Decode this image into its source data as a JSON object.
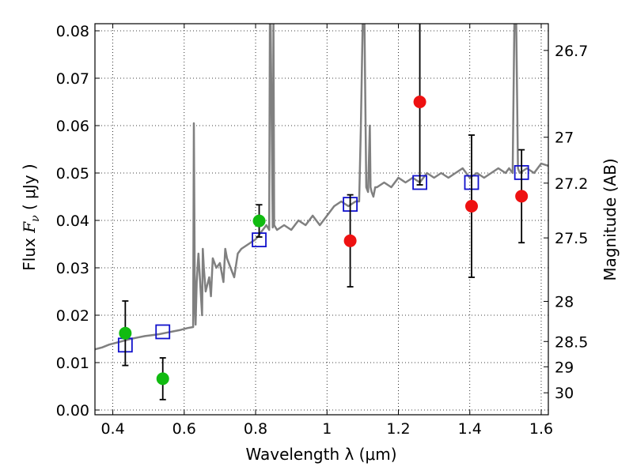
{
  "chart_data": {
    "type": "scatter",
    "title": "",
    "xlabel": "Wavelength  λ (μm)",
    "ylabel_prefix": "Flux  ",
    "ylabel_symbol": "F",
    "ylabel_subscript": "ν",
    "ylabel_unit": " ( μJy )",
    "y2label": "Magnitude (AB)",
    "xlim": [
      0.35,
      1.62
    ],
    "ylim": [
      -0.001,
      0.0815
    ],
    "grid": true,
    "x_ticks": [
      0.4,
      0.6,
      0.8,
      1.0,
      1.2,
      1.4,
      1.6
    ],
    "x_tick_labels": [
      "0.4",
      "0.6",
      "0.8",
      "1",
      "1.2",
      "1.4",
      "1.6"
    ],
    "y_ticks": [
      0.0,
      0.01,
      0.02,
      0.03,
      0.04,
      0.05,
      0.06,
      0.07,
      0.08
    ],
    "y_tick_labels": [
      "0.00",
      "0.01",
      "0.02",
      "0.03",
      "0.04",
      "0.05",
      "0.06",
      "0.07",
      "0.08"
    ],
    "mag_ticks": [
      26.7,
      27,
      27.2,
      27.5,
      28,
      28.5,
      29,
      30
    ],
    "mag_tick_labels": [
      "26.7",
      "27",
      "27.2",
      "27.5",
      "28",
      "28.5",
      "29",
      "30"
    ],
    "colors": {
      "model": "#808080",
      "observed_optical": "#11bb11",
      "observed_nir": "#ee1111",
      "model_photometry": "#1111cc",
      "errorbar": "#000000"
    },
    "series": [
      {
        "name": "model spectrum",
        "kind": "line",
        "x": [
          0.35,
          0.37,
          0.39,
          0.41,
          0.43,
          0.45,
          0.47,
          0.49,
          0.51,
          0.53,
          0.55,
          0.57,
          0.59,
          0.61,
          0.625,
          0.627,
          0.63,
          0.632,
          0.635,
          0.64,
          0.65,
          0.652,
          0.655,
          0.66,
          0.67,
          0.675,
          0.68,
          0.69,
          0.7,
          0.71,
          0.715,
          0.72,
          0.73,
          0.74,
          0.75,
          0.76,
          0.78,
          0.8,
          0.82,
          0.83,
          0.838,
          0.84,
          0.842,
          0.848,
          0.85,
          0.852,
          0.86,
          0.88,
          0.9,
          0.92,
          0.94,
          0.96,
          0.98,
          1.0,
          1.02,
          1.04,
          1.06,
          1.08,
          1.09,
          1.095,
          1.1,
          1.105,
          1.11,
          1.115,
          1.12,
          1.122,
          1.125,
          1.13,
          1.135,
          1.14,
          1.16,
          1.18,
          1.2,
          1.22,
          1.24,
          1.26,
          1.28,
          1.3,
          1.32,
          1.34,
          1.36,
          1.38,
          1.4,
          1.42,
          1.44,
          1.46,
          1.48,
          1.5,
          1.51,
          1.52,
          1.525,
          1.53,
          1.535,
          1.54,
          1.56,
          1.58,
          1.6,
          1.62
        ],
        "y": [
          0.0128,
          0.0132,
          0.0138,
          0.0142,
          0.0146,
          0.015,
          0.0153,
          0.0156,
          0.0158,
          0.016,
          0.0163,
          0.0166,
          0.0169,
          0.0173,
          0.0175,
          0.0605,
          0.022,
          0.018,
          0.027,
          0.033,
          0.02,
          0.034,
          0.03,
          0.025,
          0.028,
          0.024,
          0.032,
          0.03,
          0.031,
          0.027,
          0.034,
          0.032,
          0.03,
          0.028,
          0.033,
          0.034,
          0.035,
          0.036,
          0.038,
          0.039,
          0.038,
          0.082,
          0.082,
          0.0385,
          0.082,
          0.039,
          0.038,
          0.039,
          0.038,
          0.04,
          0.039,
          0.041,
          0.039,
          0.041,
          0.043,
          0.044,
          0.043,
          0.044,
          0.044,
          0.06,
          0.082,
          0.082,
          0.047,
          0.046,
          0.06,
          0.047,
          0.046,
          0.045,
          0.047,
          0.047,
          0.048,
          0.047,
          0.049,
          0.048,
          0.049,
          0.048,
          0.05,
          0.049,
          0.05,
          0.049,
          0.05,
          0.051,
          0.049,
          0.05,
          0.049,
          0.05,
          0.051,
          0.05,
          0.051,
          0.05,
          0.082,
          0.082,
          0.051,
          0.05,
          0.051,
          0.05,
          0.052,
          0.0515
        ]
      },
      {
        "name": "model photometry",
        "kind": "square",
        "x": [
          0.435,
          0.54,
          0.81,
          1.065,
          1.26,
          1.405,
          1.545
        ],
        "y": [
          0.0137,
          0.0165,
          0.0359,
          0.0434,
          0.048,
          0.048,
          0.0501
        ]
      },
      {
        "name": "observed optical",
        "kind": "circle",
        "x": [
          0.435,
          0.54,
          0.81
        ],
        "y": [
          0.0162,
          0.0066,
          0.0399
        ],
        "err": [
          0.0068,
          0.0044,
          0.0034
        ]
      },
      {
        "name": "observed near-IR",
        "kind": "circle",
        "x": [
          1.065,
          1.26,
          1.405,
          1.545
        ],
        "y": [
          0.0357,
          0.065,
          0.043,
          0.0451
        ],
        "err": [
          0.0097,
          0.0175,
          0.015,
          0.0098
        ]
      }
    ]
  }
}
